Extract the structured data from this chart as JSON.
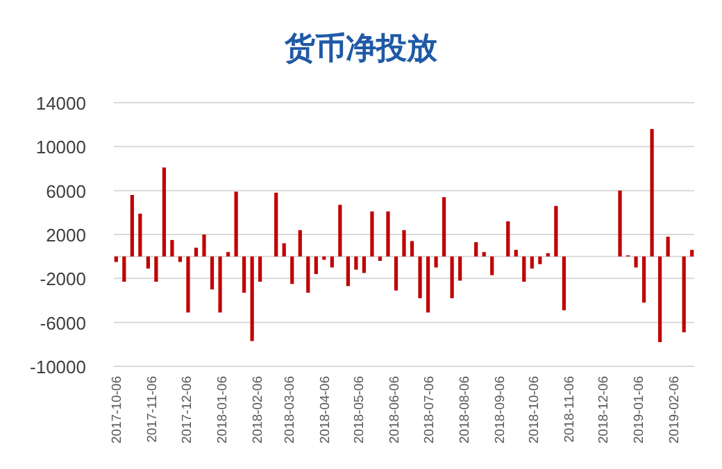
{
  "chart_data": {
    "type": "bar",
    "title": "货币净投放",
    "x": [
      "2017-10-06",
      "2017-10-13",
      "2017-10-20",
      "2017-10-27",
      "2017-11-03",
      "2017-11-10",
      "2017-11-17",
      "2017-11-24",
      "2017-12-01",
      "2017-12-08",
      "2017-12-15",
      "2017-12-22",
      "2017-12-29",
      "2018-01-05",
      "2018-01-12",
      "2018-01-19",
      "2018-01-26",
      "2018-02-02",
      "2018-02-09",
      "2018-02-23",
      "2018-03-02",
      "2018-03-09",
      "2018-03-16",
      "2018-03-23",
      "2018-03-30",
      "2018-04-06",
      "2018-04-13",
      "2018-04-20",
      "2018-04-27",
      "2018-05-04",
      "2018-05-11",
      "2018-05-18",
      "2018-05-25",
      "2018-06-01",
      "2018-06-08",
      "2018-06-15",
      "2018-06-22",
      "2018-06-29",
      "2018-07-06",
      "2018-07-13",
      "2018-07-20",
      "2018-07-27",
      "2018-08-03",
      "2018-08-17",
      "2018-08-24",
      "2018-08-31",
      "2018-09-14",
      "2018-09-21",
      "2018-09-28",
      "2018-10-05",
      "2018-10-12",
      "2018-10-19",
      "2018-10-26",
      "2018-11-02",
      "2018-12-21",
      "2018-12-28",
      "2019-01-04",
      "2019-01-11",
      "2019-01-18",
      "2019-01-25",
      "2019-02-01",
      "2019-02-15",
      "2019-02-22"
    ],
    "values": [
      -500,
      -2300,
      5600,
      3900,
      -1100,
      -2300,
      8100,
      1500,
      -500,
      -5100,
      800,
      2000,
      -3000,
      -5100,
      400,
      5900,
      -3300,
      -7700,
      -2300,
      5800,
      1200,
      -2500,
      2400,
      -3300,
      -1600,
      -300,
      -1000,
      4700,
      -2700,
      -1200,
      -1500,
      4100,
      -400,
      4100,
      -3100,
      2400,
      1400,
      -3800,
      -5100,
      -1000,
      5400,
      -3800,
      -2200,
      1300,
      400,
      -1700,
      3200,
      600,
      -2300,
      -1100,
      -700,
      300,
      4600,
      -4900,
      6000,
      100,
      -1000,
      -4200,
      11600,
      -7800,
      1800,
      -6900,
      600
    ],
    "color": "#c00000",
    "xlim": [
      "2017-10-04",
      "2019-02-24"
    ],
    "xticks": [
      "2017-10-06",
      "2017-11-06",
      "2017-12-06",
      "2018-01-06",
      "2018-02-06",
      "2018-03-06",
      "2018-04-06",
      "2018-05-06",
      "2018-06-06",
      "2018-07-06",
      "2018-08-06",
      "2018-09-06",
      "2018-10-06",
      "2018-11-06",
      "2018-12-06",
      "2019-01-06",
      "2019-02-06"
    ],
    "ylim": [
      -10000,
      14000
    ],
    "yticks": [
      -10000,
      -6000,
      -2000,
      2000,
      6000,
      10000,
      14000
    ],
    "grid": "y"
  }
}
